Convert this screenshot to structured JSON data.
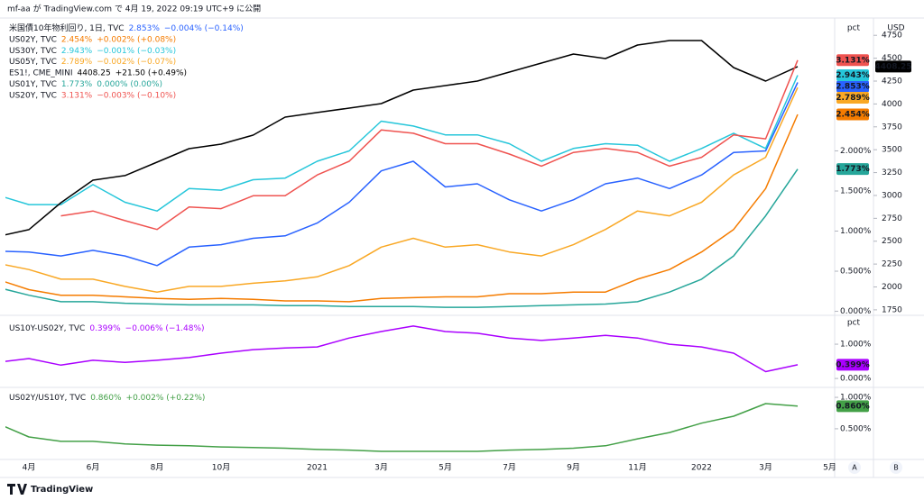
{
  "header": "mf-aa が TradingView.com で 4月 19, 2022 09:19 UTC+9 に公開",
  "footer": "TradingView",
  "buttons": [
    "A",
    "B"
  ],
  "chart_data": [
    {
      "type": "line",
      "unit": "pct",
      "y2unit": "USD",
      "categories": [
        null,
        "4月",
        null,
        "6月",
        null,
        "8月",
        null,
        "10月",
        null,
        null,
        "2021",
        null,
        "3月",
        null,
        "5月",
        null,
        "7月",
        null,
        "9月",
        null,
        "11月",
        null,
        "2022",
        null,
        "3月",
        null,
        "5月"
      ],
      "ylim": [
        -0.05,
        3.6
      ],
      "yticks": [
        {
          "value": 0,
          "label": "0.000%"
        },
        {
          "value": 0.5,
          "label": "0.500%"
        },
        {
          "value": 1,
          "label": "1.000%"
        },
        {
          "value": 1.5,
          "label": "1.500%"
        },
        {
          "value": 2,
          "label": "2.000%"
        }
      ],
      "y2lim": [
        1690,
        4890
      ],
      "y2ticks": [
        1750,
        2000,
        2250,
        2500,
        2750,
        3000,
        3250,
        3500,
        3750,
        4000,
        4250,
        4500,
        4750
      ],
      "series": [
        {
          "name": "米国債10年物利回り, 1日, TVC",
          "color": "#2962ff",
          "last_label": "2.853%",
          "change": "−0.004% (−0.14%)",
          "values": [
            0.75,
            0.74,
            0.69,
            0.76,
            0.69,
            0.57,
            0.8,
            0.83,
            0.91,
            0.94,
            1.1,
            1.36,
            1.75,
            1.87,
            1.55,
            1.59,
            1.39,
            1.25,
            1.39,
            1.59,
            1.66,
            1.53,
            1.7,
            1.98,
            2.0,
            2.853,
            null
          ]
        },
        {
          "name": "US02Y, TVC",
          "color": "#f57c00",
          "last_label": "2.454%",
          "change": "+0.002% (+0.08%)",
          "values": [
            0.4,
            0.27,
            0.2,
            0.2,
            0.18,
            0.16,
            0.15,
            0.16,
            0.15,
            0.13,
            0.13,
            0.12,
            0.16,
            0.17,
            0.18,
            0.18,
            0.22,
            0.22,
            0.24,
            0.24,
            0.4,
            0.52,
            0.74,
            1.02,
            1.53,
            2.454,
            null
          ]
        },
        {
          "name": "US30Y, TVC",
          "color": "#26c6da",
          "last_label": "2.943%",
          "change": "−0.001% (−0.03%)",
          "values": [
            1.45,
            1.33,
            1.33,
            1.58,
            1.36,
            1.25,
            1.53,
            1.51,
            1.64,
            1.66,
            1.87,
            2.0,
            2.37,
            2.31,
            2.2,
            2.2,
            2.09,
            1.87,
            2.03,
            2.09,
            2.07,
            1.87,
            2.03,
            2.22,
            2.03,
            2.943,
            null
          ]
        },
        {
          "name": "US05Y, TVC",
          "color": "#f9a825",
          "last_label": "2.789%",
          "change": "−0.002% (−0.07%)",
          "values": [
            0.6,
            0.52,
            0.4,
            0.4,
            0.31,
            0.24,
            0.31,
            0.31,
            0.35,
            0.38,
            0.43,
            0.57,
            0.8,
            0.91,
            0.8,
            0.83,
            0.74,
            0.69,
            0.83,
            1.02,
            1.25,
            1.19,
            1.36,
            1.7,
            1.92,
            2.789,
            null
          ]
        },
        {
          "name": "ES1!, CME_MINI",
          "color": "#000000",
          "axis": "y2",
          "change": "+21.50 (+0.49%)",
          "values": [
            2550,
            2626,
            2921,
            3167,
            3217,
            3364,
            3512,
            3561,
            3659,
            3856,
            3906,
            3955,
            4004,
            4152,
            4201,
            4250,
            4348,
            4447,
            4545,
            4496,
            4644,
            4693,
            4693,
            4398,
            4250,
            4408.25,
            null
          ]
        },
        {
          "name": "US01Y, TVC",
          "color": "#26a69a",
          "last_label": "1.773%",
          "change": "0.000% (0.00%)",
          "values": [
            0.3,
            0.2,
            0.12,
            0.12,
            0.1,
            0.09,
            0.08,
            0.08,
            0.08,
            0.07,
            0.07,
            0.06,
            0.06,
            0.06,
            0.05,
            0.05,
            0.06,
            0.07,
            0.08,
            0.09,
            0.12,
            0.24,
            0.4,
            0.69,
            1.19,
            1.773,
            null
          ]
        },
        {
          "name": "US20Y, TVC",
          "color": "#ef5350",
          "last_label": "3.131%",
          "change": "−0.003% (−0.10%)",
          "values": [
            null,
            null,
            1.19,
            1.25,
            1.13,
            1.02,
            1.3,
            1.28,
            1.44,
            1.44,
            1.7,
            1.87,
            2.26,
            2.22,
            2.09,
            2.09,
            1.96,
            1.81,
            1.98,
            2.03,
            1.98,
            1.81,
            1.92,
            2.2,
            2.15,
            3.131,
            null
          ]
        }
      ]
    },
    {
      "type": "line",
      "unit": "pct",
      "categories": [
        null,
        "4月",
        null,
        "6月",
        null,
        "8月",
        null,
        "10月",
        null,
        null,
        "2021",
        null,
        "3月",
        null,
        "5月",
        null,
        "7月",
        null,
        "9月",
        null,
        "11月",
        null,
        "2022",
        null,
        "3月",
        null,
        "5月"
      ],
      "ylim": [
        -0.26,
        1.79
      ],
      "yticks": [
        {
          "value": 0,
          "label": "0.000%"
        },
        {
          "value": 1,
          "label": "1.000%"
        }
      ],
      "series": [
        {
          "name": "US10Y-US02Y, TVC",
          "color": "#aa00ff",
          "last_label": "0.399%",
          "change": "−0.006% (−1.48%)",
          "values": [
            0.47,
            0.58,
            0.39,
            0.53,
            0.47,
            0.53,
            0.61,
            0.74,
            0.84,
            0.89,
            0.92,
            1.18,
            1.37,
            1.53,
            1.37,
            1.32,
            1.18,
            1.11,
            1.18,
            1.26,
            1.18,
            1.0,
            0.92,
            0.74,
            0.2,
            0.399,
            null
          ]
        }
      ]
    },
    {
      "type": "line",
      "categories": [
        null,
        "4月",
        null,
        "6月",
        null,
        "8月",
        null,
        "10月",
        null,
        null,
        "2021",
        null,
        "3月",
        null,
        "5月",
        null,
        "7月",
        null,
        "9月",
        null,
        "11月",
        null,
        "2022",
        null,
        "3月",
        null,
        "5月"
      ],
      "ylim": [
        0.04,
        1.13
      ],
      "yticks": [
        {
          "value": 0.5,
          "label": "0.500%"
        },
        {
          "value": 1,
          "label": "1.000%"
        }
      ],
      "series": [
        {
          "name": "US02Y/US10Y, TVC",
          "color": "#43a047",
          "last_label": "0.860%",
          "change": "+0.002% (+0.22%)",
          "values": [
            0.59,
            0.37,
            0.3,
            0.3,
            0.26,
            0.24,
            0.23,
            0.21,
            0.2,
            0.19,
            0.17,
            0.16,
            0.14,
            0.14,
            0.14,
            0.14,
            0.16,
            0.17,
            0.19,
            0.23,
            0.34,
            0.44,
            0.59,
            0.7,
            0.9,
            0.86,
            null
          ]
        }
      ]
    }
  ]
}
